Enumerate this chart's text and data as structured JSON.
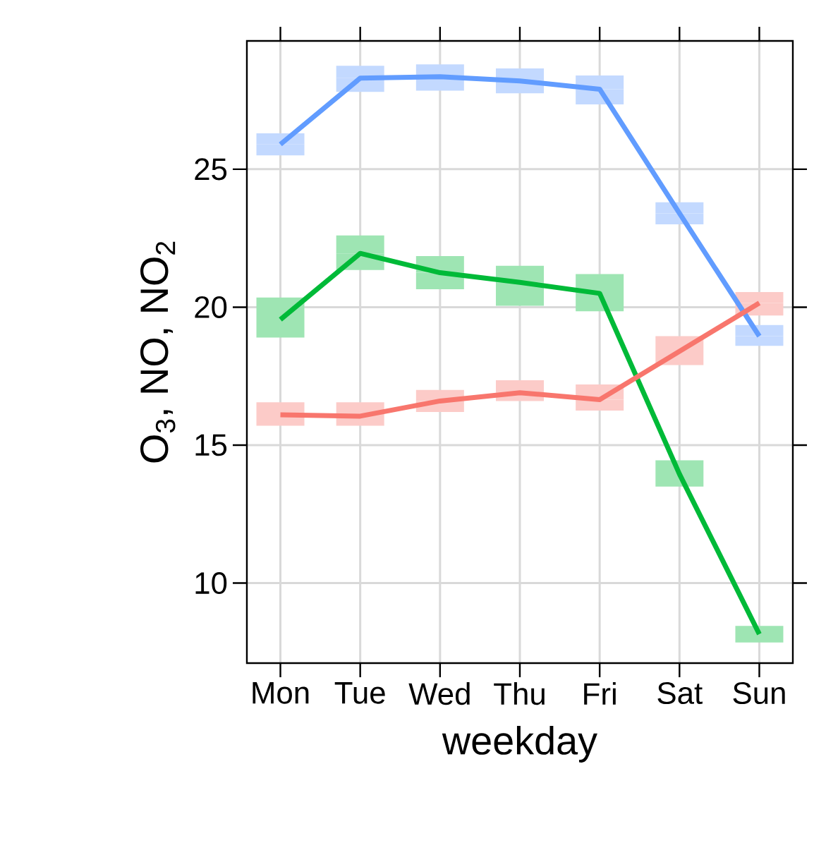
{
  "chart_data": {
    "type": "line",
    "xlabel": "weekday",
    "ylabel": "O$_{3}$, NO, NO$_{2}$",
    "categories": [
      "Mon",
      "Tue",
      "Wed",
      "Thu",
      "Fri",
      "Sat",
      "Sun"
    ],
    "series": [
      {
        "color": "#619cff",
        "values": [
          25.9,
          28.3,
          28.35,
          28.2,
          27.9,
          23.4,
          18.95
        ],
        "errors": [
          [
            25.5,
            26.3
          ],
          [
            27.8,
            28.75
          ],
          [
            27.85,
            28.8
          ],
          [
            27.75,
            28.65
          ],
          [
            27.35,
            28.4
          ],
          [
            23.0,
            23.8
          ],
          [
            18.6,
            19.35
          ]
        ]
      },
      {
        "color": "#00ba38",
        "values": [
          19.55,
          21.95,
          21.25,
          20.9,
          20.5,
          13.95,
          8.15
        ],
        "errors": [
          [
            18.9,
            20.35
          ],
          [
            21.35,
            22.6
          ],
          [
            20.65,
            21.85
          ],
          [
            20.05,
            21.5
          ],
          [
            19.85,
            21.2
          ],
          [
            13.5,
            14.45
          ],
          [
            7.85,
            8.45
          ]
        ]
      },
      {
        "color": "#f8766d",
        "values": [
          16.1,
          16.05,
          16.6,
          16.9,
          16.65,
          18.4,
          20.15
        ],
        "errors": [
          [
            15.7,
            16.55
          ],
          [
            15.7,
            16.55
          ],
          [
            16.2,
            17.0
          ],
          [
            16.6,
            17.35
          ],
          [
            16.25,
            17.2
          ],
          [
            17.9,
            18.95
          ],
          [
            19.7,
            20.55
          ]
        ]
      }
    ],
    "ylim": [
      7.1,
      29.65
    ],
    "yticks": [
      10,
      15,
      20,
      25
    ],
    "grid": true
  }
}
